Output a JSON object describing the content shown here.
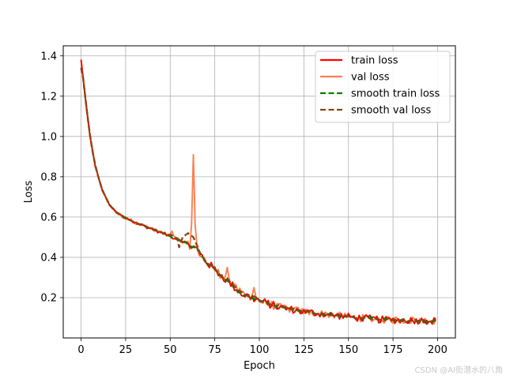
{
  "chart_data": {
    "type": "line",
    "title": "",
    "xlabel": "Epoch",
    "ylabel": "Loss",
    "xlim": [
      -10,
      210
    ],
    "ylim": [
      0.0,
      1.45
    ],
    "xticks": [
      "0",
      "25",
      "50",
      "75",
      "100",
      "125",
      "150",
      "175",
      "200"
    ],
    "yticks": [
      "0.2",
      "0.4",
      "0.6",
      "0.8",
      "1.0",
      "1.2",
      "1.4"
    ],
    "grid": true,
    "legend_position": "top-right",
    "series": [
      {
        "name": "train loss",
        "color": "#ff0000",
        "style": "solid",
        "kind": "train_raw"
      },
      {
        "name": "val loss",
        "color": "#ff7f50",
        "style": "solid",
        "kind": "val_raw"
      },
      {
        "name": "smooth train loss",
        "color": "#008000",
        "style": "dashed",
        "kind": "train_smooth"
      },
      {
        "name": "smooth val loss",
        "color": "#8b4513",
        "style": "dashed",
        "kind": "val_smooth"
      }
    ],
    "epochs": [
      0,
      199
    ],
    "base_curve": {
      "points": [
        [
          0,
          1.38
        ],
        [
          2,
          1.22
        ],
        [
          5,
          1.0
        ],
        [
          8,
          0.85
        ],
        [
          12,
          0.73
        ],
        [
          16,
          0.66
        ],
        [
          20,
          0.62
        ],
        [
          25,
          0.595
        ],
        [
          30,
          0.575
        ],
        [
          40,
          0.54
        ],
        [
          50,
          0.505
        ],
        [
          57,
          0.48
        ],
        [
          65,
          0.44
        ],
        [
          70,
          0.38
        ],
        [
          80,
          0.3
        ],
        [
          90,
          0.22
        ],
        [
          100,
          0.185
        ],
        [
          110,
          0.155
        ],
        [
          125,
          0.13
        ],
        [
          140,
          0.115
        ],
        [
          155,
          0.1
        ],
        [
          170,
          0.09
        ],
        [
          185,
          0.088
        ],
        [
          199,
          0.085
        ]
      ]
    },
    "val_spikes": [
      [
        51,
        0.53
      ],
      [
        63,
        0.91
      ],
      [
        82,
        0.35
      ],
      [
        97,
        0.25
      ]
    ],
    "val_smooth_bump": [
      [
        55,
        0.45
      ],
      [
        57,
        0.5
      ],
      [
        60,
        0.52
      ],
      [
        63,
        0.5
      ],
      [
        66,
        0.44
      ]
    ]
  },
  "watermark": "CSDN @AI街潜水的八角"
}
